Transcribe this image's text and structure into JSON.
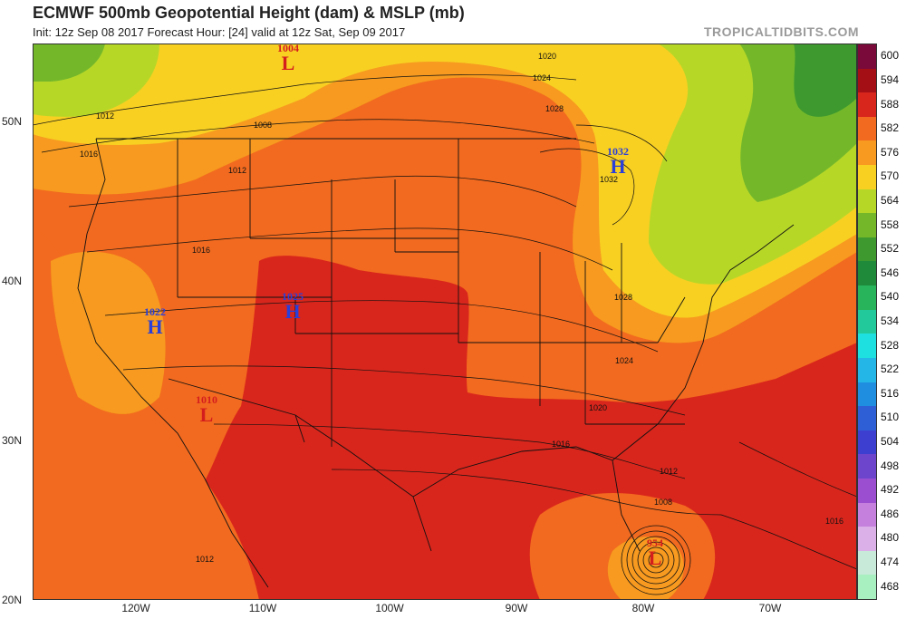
{
  "header": {
    "title": "ECMWF 500mb Geopotential Height (dam) & MSLP (mb)",
    "subtitle": "Init: 12z Sep 08 2017   Forecast Hour: [24]   valid at 12z Sat, Sep 09 2017",
    "brand": "TROPICALTIDBITS.COM"
  },
  "axes": {
    "lat_labels": [
      "50N",
      "40N",
      "30N",
      "20N"
    ],
    "lon_labels": [
      "120W",
      "110W",
      "100W",
      "90W",
      "80W",
      "70W"
    ]
  },
  "legend": {
    "levels": [
      "600",
      "594",
      "588",
      "582",
      "576",
      "570",
      "564",
      "558",
      "552",
      "546",
      "540",
      "534",
      "528",
      "522",
      "516",
      "510",
      "504",
      "498",
      "492",
      "486",
      "480",
      "474",
      "468"
    ],
    "colors": [
      "#7a0a3a",
      "#a30f14",
      "#d9261c",
      "#f26a1f",
      "#f79a1f",
      "#f8d022",
      "#b7d727",
      "#74b82a",
      "#3e9a2e",
      "#1e8a3a",
      "#27b45a",
      "#22c99a",
      "#1fe0e0",
      "#24b6e6",
      "#1f8ee0",
      "#2f5fd7",
      "#3c3fcf",
      "#6d44cc",
      "#9b4ed0",
      "#c57fdc",
      "#dbb0e8",
      "#c8ead9",
      "#a8f0c0"
    ]
  },
  "systems": [
    {
      "type": "L",
      "pressure": "1004",
      "kind": "low"
    },
    {
      "type": "H",
      "pressure": "1022",
      "kind": "high"
    },
    {
      "type": "H",
      "pressure": "1025",
      "kind": "high"
    },
    {
      "type": "H",
      "pressure": "1032",
      "kind": "high"
    },
    {
      "type": "L",
      "pressure": "1010",
      "kind": "low"
    },
    {
      "type": "L",
      "pressure": "954",
      "kind": "low"
    }
  ],
  "isobar_labels": [
    "1012",
    "1016",
    "1008",
    "1012",
    "1016",
    "1020",
    "1024",
    "1028",
    "1032",
    "1028",
    "1024",
    "1020",
    "1016",
    "1012",
    "1008",
    "1016",
    "1012"
  ]
}
